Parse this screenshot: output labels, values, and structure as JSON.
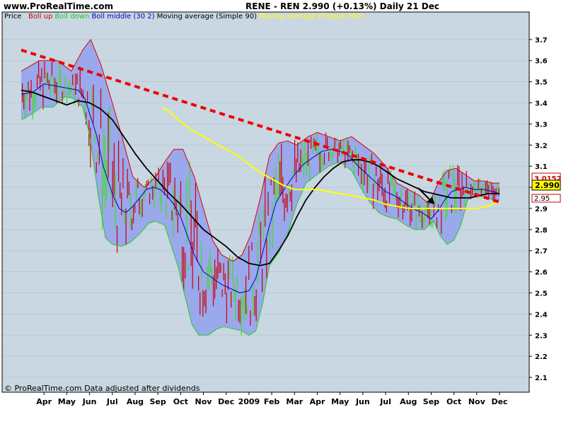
{
  "header": {
    "site": "www.ProRealTime.com",
    "title": "RENE - REN   2.990 (+0.13%)   Daily  21 Dec"
  },
  "legend": {
    "items": [
      {
        "label": "Price",
        "color": "#000000"
      },
      {
        "label": "Boll up",
        "color": "#dd0000"
      },
      {
        "label": "Boll down",
        "color": "#22cc22"
      },
      {
        "label": "Boll middle (30 2)",
        "color": "#0000cc"
      },
      {
        "label": "Moving average (Simple 90)",
        "color": "#000000"
      },
      {
        "label": "Moving average (Simple 200)",
        "color": "#ffff00"
      }
    ]
  },
  "footer": {
    "copyright": "© ProRealTime.com  Data adjusted after dividends"
  },
  "price_labels": {
    "upper": "3.0152",
    "last": "2.990",
    "lower": "2.95"
  },
  "colors": {
    "background": "#c8d7e1",
    "band_fill": "#9aa8ec",
    "up_band": "#dd0000",
    "down_band": "#22cc22",
    "middle": "#0000cc",
    "ma90": "#000000",
    "ma200": "#ffff00",
    "trendline": "#ee0000",
    "bar_up": "#44dd22",
    "bar_down": "#cc0000"
  },
  "chart_data": {
    "type": "line",
    "ylim": [
      2.03,
      3.83
    ],
    "yticks": [
      2.1,
      2.2,
      2.3,
      2.4,
      2.5,
      2.6,
      2.7,
      2.8,
      2.9,
      3.0,
      3.1,
      3.2,
      3.3,
      3.4,
      3.5,
      3.6,
      3.7
    ],
    "ytick_labels": [
      "2.1",
      "2.2",
      "2.3",
      "2.4",
      "2.5",
      "2.6",
      "2.7",
      "2.8",
      "2.9",
      "3.0",
      "3.1",
      "3.2",
      "3.3",
      "3.4",
      "3.5",
      "3.6",
      "3.7"
    ],
    "xlim": [
      0,
      21
    ],
    "xticks": [
      {
        "t": 1.0,
        "label": "Apr"
      },
      {
        "t": 2.0,
        "label": "May"
      },
      {
        "t": 3.0,
        "label": "Jun"
      },
      {
        "t": 4.0,
        "label": "Jul"
      },
      {
        "t": 5.0,
        "label": "Aug"
      },
      {
        "t": 6.0,
        "label": "Sep"
      },
      {
        "t": 7.0,
        "label": "Oct"
      },
      {
        "t": 8.0,
        "label": "Nov"
      },
      {
        "t": 9.0,
        "label": "Dec"
      },
      {
        "t": 10.0,
        "label": "2009"
      },
      {
        "t": 11.0,
        "label": "Feb"
      },
      {
        "t": 12.0,
        "label": "Mar"
      },
      {
        "t": 13.0,
        "label": "Apr"
      },
      {
        "t": 14.0,
        "label": "May"
      },
      {
        "t": 15.0,
        "label": "Jun"
      },
      {
        "t": 16.0,
        "label": "Jul"
      },
      {
        "t": 17.0,
        "label": "Aug"
      },
      {
        "t": 18.0,
        "label": "Sep"
      },
      {
        "t": 19.0,
        "label": "Oct"
      },
      {
        "t": 20.0,
        "label": "Nov"
      },
      {
        "t": 21.0,
        "label": "Dec"
      }
    ],
    "series": [
      {
        "name": "Boll up",
        "points": [
          [
            0,
            3.55
          ],
          [
            0.8,
            3.6
          ],
          [
            1.6,
            3.6
          ],
          [
            2.2,
            3.55
          ],
          [
            2.7,
            3.65
          ],
          [
            3.05,
            3.7
          ],
          [
            3.5,
            3.58
          ],
          [
            4.0,
            3.4
          ],
          [
            4.4,
            3.25
          ],
          [
            4.9,
            3.05
          ],
          [
            5.4,
            3.0
          ],
          [
            5.9,
            3.05
          ],
          [
            6.3,
            3.12
          ],
          [
            6.7,
            3.18
          ],
          [
            7.1,
            3.18
          ],
          [
            7.6,
            3.05
          ],
          [
            8.0,
            2.9
          ],
          [
            8.4,
            2.75
          ],
          [
            8.8,
            2.68
          ],
          [
            9.3,
            2.65
          ],
          [
            9.7,
            2.68
          ],
          [
            10.1,
            2.78
          ],
          [
            10.5,
            2.95
          ],
          [
            10.9,
            3.15
          ],
          [
            11.3,
            3.21
          ],
          [
            11.7,
            3.22
          ],
          [
            12.1,
            3.2
          ],
          [
            12.6,
            3.24
          ],
          [
            13.0,
            3.26
          ],
          [
            13.5,
            3.24
          ],
          [
            14.0,
            3.22
          ],
          [
            14.5,
            3.24
          ],
          [
            15.0,
            3.2
          ],
          [
            15.5,
            3.16
          ],
          [
            16.0,
            3.1
          ],
          [
            16.5,
            3.02
          ],
          [
            17.0,
            2.99
          ],
          [
            17.5,
            2.96
          ],
          [
            17.9,
            2.92
          ],
          [
            18.3,
            3.02
          ],
          [
            18.7,
            3.08
          ],
          [
            19.1,
            3.09
          ],
          [
            19.5,
            3.06
          ],
          [
            19.9,
            3.03
          ],
          [
            20.3,
            3.03
          ],
          [
            20.7,
            3.02
          ],
          [
            21.0,
            3.02
          ]
        ]
      },
      {
        "name": "Boll down",
        "points": [
          [
            0,
            3.32
          ],
          [
            0.5,
            3.35
          ],
          [
            0.9,
            3.38
          ],
          [
            1.4,
            3.38
          ],
          [
            1.9,
            3.43
          ],
          [
            2.3,
            3.42
          ],
          [
            2.7,
            3.38
          ],
          [
            3.0,
            3.25
          ],
          [
            3.4,
            2.95
          ],
          [
            3.7,
            2.76
          ],
          [
            4.0,
            2.73
          ],
          [
            4.4,
            2.72
          ],
          [
            4.8,
            2.74
          ],
          [
            5.2,
            2.78
          ],
          [
            5.6,
            2.83
          ],
          [
            5.9,
            2.84
          ],
          [
            6.3,
            2.82
          ],
          [
            6.6,
            2.72
          ],
          [
            6.9,
            2.62
          ],
          [
            7.2,
            2.48
          ],
          [
            7.5,
            2.35
          ],
          [
            7.8,
            2.3
          ],
          [
            8.2,
            2.3
          ],
          [
            8.6,
            2.33
          ],
          [
            8.9,
            2.34
          ],
          [
            9.3,
            2.33
          ],
          [
            9.7,
            2.32
          ],
          [
            10.0,
            2.3
          ],
          [
            10.3,
            2.32
          ],
          [
            10.6,
            2.45
          ],
          [
            10.9,
            2.63
          ],
          [
            11.3,
            2.69
          ],
          [
            11.7,
            2.78
          ],
          [
            12.1,
            2.92
          ],
          [
            12.5,
            3.02
          ],
          [
            13.0,
            3.06
          ],
          [
            13.5,
            3.1
          ],
          [
            14.0,
            3.12
          ],
          [
            14.5,
            3.08
          ],
          [
            14.9,
            3.0
          ],
          [
            15.3,
            2.93
          ],
          [
            15.7,
            2.88
          ],
          [
            16.1,
            2.86
          ],
          [
            16.5,
            2.85
          ],
          [
            16.9,
            2.82
          ],
          [
            17.3,
            2.8
          ],
          [
            17.7,
            2.8
          ],
          [
            18.1,
            2.84
          ],
          [
            18.4,
            2.77
          ],
          [
            18.7,
            2.73
          ],
          [
            19.0,
            2.75
          ],
          [
            19.3,
            2.82
          ],
          [
            19.6,
            2.94
          ],
          [
            19.9,
            2.96
          ],
          [
            20.3,
            2.96
          ],
          [
            20.7,
            2.94
          ],
          [
            21.0,
            2.94
          ]
        ]
      },
      {
        "name": "Boll middle (30 2)",
        "points": [
          [
            0,
            3.44
          ],
          [
            0.5,
            3.45
          ],
          [
            1.0,
            3.49
          ],
          [
            1.5,
            3.48
          ],
          [
            2.0,
            3.47
          ],
          [
            2.5,
            3.46
          ],
          [
            2.8,
            3.42
          ],
          [
            3.0,
            3.35
          ],
          [
            3.3,
            3.25
          ],
          [
            3.6,
            3.1
          ],
          [
            4.0,
            2.97
          ],
          [
            4.3,
            2.9
          ],
          [
            4.6,
            2.88
          ],
          [
            4.9,
            2.91
          ],
          [
            5.2,
            2.95
          ],
          [
            5.5,
            2.99
          ],
          [
            5.8,
            3.0
          ],
          [
            6.1,
            2.99
          ],
          [
            6.4,
            2.96
          ],
          [
            6.7,
            2.92
          ],
          [
            7.0,
            2.86
          ],
          [
            7.3,
            2.77
          ],
          [
            7.6,
            2.68
          ],
          [
            8.0,
            2.6
          ],
          [
            8.4,
            2.57
          ],
          [
            8.8,
            2.54
          ],
          [
            9.2,
            2.52
          ],
          [
            9.6,
            2.5
          ],
          [
            10.0,
            2.51
          ],
          [
            10.3,
            2.57
          ],
          [
            10.6,
            2.69
          ],
          [
            10.9,
            2.82
          ],
          [
            11.2,
            2.93
          ],
          [
            11.6,
            3.0
          ],
          [
            12.0,
            3.06
          ],
          [
            12.4,
            3.11
          ],
          [
            12.8,
            3.14
          ],
          [
            13.2,
            3.17
          ],
          [
            13.6,
            3.18
          ],
          [
            14.0,
            3.17
          ],
          [
            14.4,
            3.15
          ],
          [
            14.8,
            3.1
          ],
          [
            15.2,
            3.06
          ],
          [
            15.6,
            3.02
          ],
          [
            16.0,
            2.98
          ],
          [
            16.4,
            2.96
          ],
          [
            16.8,
            2.93
          ],
          [
            17.2,
            2.9
          ],
          [
            17.6,
            2.88
          ],
          [
            18.0,
            2.85
          ],
          [
            18.3,
            2.89
          ],
          [
            18.6,
            2.94
          ],
          [
            18.9,
            2.98
          ],
          [
            19.2,
            2.99
          ],
          [
            19.5,
            3.0
          ],
          [
            19.9,
            2.99
          ],
          [
            20.3,
            2.99
          ],
          [
            20.7,
            2.98
          ],
          [
            21.0,
            2.97
          ]
        ]
      },
      {
        "name": "Moving average (Simple 90)",
        "points": [
          [
            0,
            3.46
          ],
          [
            0.5,
            3.45
          ],
          [
            1.0,
            3.43
          ],
          [
            1.5,
            3.41
          ],
          [
            2.0,
            3.39
          ],
          [
            2.5,
            3.41
          ],
          [
            3.0,
            3.4
          ],
          [
            3.5,
            3.37
          ],
          [
            4.0,
            3.32
          ],
          [
            4.5,
            3.24
          ],
          [
            5.0,
            3.16
          ],
          [
            5.5,
            3.09
          ],
          [
            6.0,
            3.03
          ],
          [
            6.5,
            2.97
          ],
          [
            7.0,
            2.92
          ],
          [
            7.5,
            2.86
          ],
          [
            8.0,
            2.8
          ],
          [
            8.5,
            2.76
          ],
          [
            9.0,
            2.72
          ],
          [
            9.5,
            2.67
          ],
          [
            10.0,
            2.64
          ],
          [
            10.5,
            2.63
          ],
          [
            10.9,
            2.64
          ],
          [
            11.3,
            2.7
          ],
          [
            11.7,
            2.77
          ],
          [
            12.1,
            2.86
          ],
          [
            12.5,
            2.94
          ],
          [
            12.9,
            3.0
          ],
          [
            13.3,
            3.05
          ],
          [
            13.7,
            3.09
          ],
          [
            14.1,
            3.12
          ],
          [
            14.5,
            3.13
          ],
          [
            14.9,
            3.13
          ],
          [
            15.3,
            3.12
          ],
          [
            15.7,
            3.1
          ],
          [
            16.1,
            3.07
          ],
          [
            16.5,
            3.04
          ],
          [
            16.9,
            3.02
          ],
          [
            17.3,
            3.0
          ],
          [
            17.7,
            2.98
          ],
          [
            18.1,
            2.97
          ],
          [
            18.5,
            2.96
          ],
          [
            18.9,
            2.95
          ],
          [
            19.3,
            2.95
          ],
          [
            19.7,
            2.95
          ],
          [
            20.1,
            2.96
          ],
          [
            20.5,
            2.97
          ],
          [
            21.0,
            2.97
          ]
        ]
      },
      {
        "name": "Moving average (Simple 200)",
        "points": [
          [
            6.2,
            3.38
          ],
          [
            6.6,
            3.35
          ],
          [
            7.0,
            3.31
          ],
          [
            7.5,
            3.27
          ],
          [
            8.0,
            3.24
          ],
          [
            8.5,
            3.21
          ],
          [
            9.0,
            3.18
          ],
          [
            9.5,
            3.15
          ],
          [
            10.0,
            3.11
          ],
          [
            10.5,
            3.07
          ],
          [
            11.0,
            3.04
          ],
          [
            11.5,
            3.01
          ],
          [
            12.0,
            2.99
          ],
          [
            12.5,
            2.99
          ],
          [
            13.0,
            2.99
          ],
          [
            13.5,
            2.98
          ],
          [
            14.0,
            2.97
          ],
          [
            14.5,
            2.96
          ],
          [
            15.0,
            2.95
          ],
          [
            15.5,
            2.94
          ],
          [
            16.0,
            2.92
          ],
          [
            16.5,
            2.91
          ],
          [
            17.0,
            2.9
          ],
          [
            17.5,
            2.9
          ],
          [
            18.0,
            2.9
          ],
          [
            18.5,
            2.9
          ],
          [
            19.0,
            2.9
          ],
          [
            19.5,
            2.9
          ],
          [
            20.0,
            2.9
          ],
          [
            20.5,
            2.91
          ],
          [
            20.9,
            2.93
          ]
        ]
      },
      {
        "name": "Trendline",
        "points": [
          [
            0,
            3.65
          ],
          [
            21.0,
            2.93
          ]
        ]
      }
    ]
  }
}
